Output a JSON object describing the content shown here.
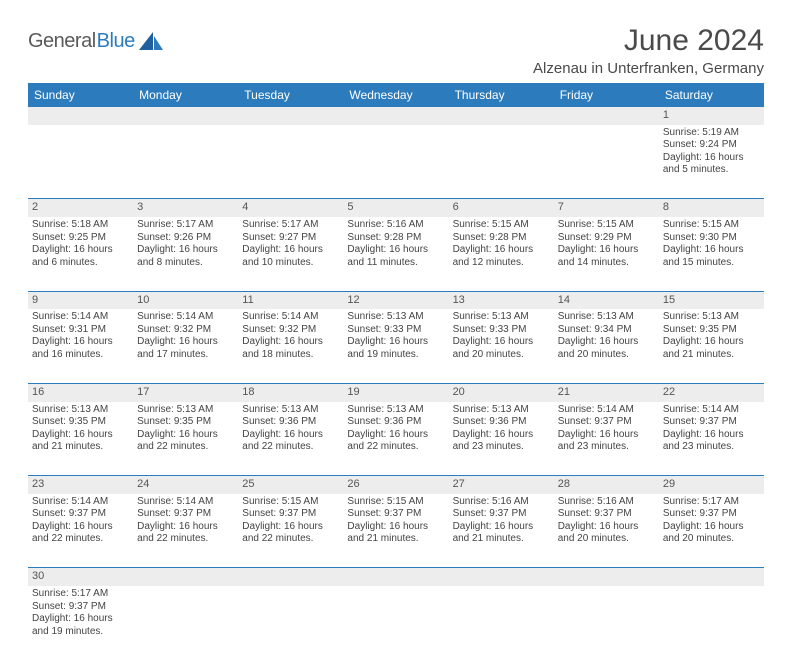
{
  "logo": {
    "text1": "General",
    "text2": "Blue"
  },
  "title": "June 2024",
  "location": "Alzenau in Unterfranken, Germany",
  "columns": [
    "Sunday",
    "Monday",
    "Tuesday",
    "Wednesday",
    "Thursday",
    "Friday",
    "Saturday"
  ],
  "colors": {
    "header_bg": "#2b7bbd",
    "header_fg": "#ffffff",
    "daynum_bg": "#ededed",
    "rule": "#2b7bbd",
    "text": "#444444"
  },
  "weeks": [
    [
      null,
      null,
      null,
      null,
      null,
      null,
      {
        "n": "1",
        "sr": "Sunrise: 5:19 AM",
        "ss": "Sunset: 9:24 PM",
        "d1": "Daylight: 16 hours",
        "d2": "and 5 minutes."
      }
    ],
    [
      {
        "n": "2",
        "sr": "Sunrise: 5:18 AM",
        "ss": "Sunset: 9:25 PM",
        "d1": "Daylight: 16 hours",
        "d2": "and 6 minutes."
      },
      {
        "n": "3",
        "sr": "Sunrise: 5:17 AM",
        "ss": "Sunset: 9:26 PM",
        "d1": "Daylight: 16 hours",
        "d2": "and 8 minutes."
      },
      {
        "n": "4",
        "sr": "Sunrise: 5:17 AM",
        "ss": "Sunset: 9:27 PM",
        "d1": "Daylight: 16 hours",
        "d2": "and 10 minutes."
      },
      {
        "n": "5",
        "sr": "Sunrise: 5:16 AM",
        "ss": "Sunset: 9:28 PM",
        "d1": "Daylight: 16 hours",
        "d2": "and 11 minutes."
      },
      {
        "n": "6",
        "sr": "Sunrise: 5:15 AM",
        "ss": "Sunset: 9:28 PM",
        "d1": "Daylight: 16 hours",
        "d2": "and 12 minutes."
      },
      {
        "n": "7",
        "sr": "Sunrise: 5:15 AM",
        "ss": "Sunset: 9:29 PM",
        "d1": "Daylight: 16 hours",
        "d2": "and 14 minutes."
      },
      {
        "n": "8",
        "sr": "Sunrise: 5:15 AM",
        "ss": "Sunset: 9:30 PM",
        "d1": "Daylight: 16 hours",
        "d2": "and 15 minutes."
      }
    ],
    [
      {
        "n": "9",
        "sr": "Sunrise: 5:14 AM",
        "ss": "Sunset: 9:31 PM",
        "d1": "Daylight: 16 hours",
        "d2": "and 16 minutes."
      },
      {
        "n": "10",
        "sr": "Sunrise: 5:14 AM",
        "ss": "Sunset: 9:32 PM",
        "d1": "Daylight: 16 hours",
        "d2": "and 17 minutes."
      },
      {
        "n": "11",
        "sr": "Sunrise: 5:14 AM",
        "ss": "Sunset: 9:32 PM",
        "d1": "Daylight: 16 hours",
        "d2": "and 18 minutes."
      },
      {
        "n": "12",
        "sr": "Sunrise: 5:13 AM",
        "ss": "Sunset: 9:33 PM",
        "d1": "Daylight: 16 hours",
        "d2": "and 19 minutes."
      },
      {
        "n": "13",
        "sr": "Sunrise: 5:13 AM",
        "ss": "Sunset: 9:33 PM",
        "d1": "Daylight: 16 hours",
        "d2": "and 20 minutes."
      },
      {
        "n": "14",
        "sr": "Sunrise: 5:13 AM",
        "ss": "Sunset: 9:34 PM",
        "d1": "Daylight: 16 hours",
        "d2": "and 20 minutes."
      },
      {
        "n": "15",
        "sr": "Sunrise: 5:13 AM",
        "ss": "Sunset: 9:35 PM",
        "d1": "Daylight: 16 hours",
        "d2": "and 21 minutes."
      }
    ],
    [
      {
        "n": "16",
        "sr": "Sunrise: 5:13 AM",
        "ss": "Sunset: 9:35 PM",
        "d1": "Daylight: 16 hours",
        "d2": "and 21 minutes."
      },
      {
        "n": "17",
        "sr": "Sunrise: 5:13 AM",
        "ss": "Sunset: 9:35 PM",
        "d1": "Daylight: 16 hours",
        "d2": "and 22 minutes."
      },
      {
        "n": "18",
        "sr": "Sunrise: 5:13 AM",
        "ss": "Sunset: 9:36 PM",
        "d1": "Daylight: 16 hours",
        "d2": "and 22 minutes."
      },
      {
        "n": "19",
        "sr": "Sunrise: 5:13 AM",
        "ss": "Sunset: 9:36 PM",
        "d1": "Daylight: 16 hours",
        "d2": "and 22 minutes."
      },
      {
        "n": "20",
        "sr": "Sunrise: 5:13 AM",
        "ss": "Sunset: 9:36 PM",
        "d1": "Daylight: 16 hours",
        "d2": "and 23 minutes."
      },
      {
        "n": "21",
        "sr": "Sunrise: 5:14 AM",
        "ss": "Sunset: 9:37 PM",
        "d1": "Daylight: 16 hours",
        "d2": "and 23 minutes."
      },
      {
        "n": "22",
        "sr": "Sunrise: 5:14 AM",
        "ss": "Sunset: 9:37 PM",
        "d1": "Daylight: 16 hours",
        "d2": "and 23 minutes."
      }
    ],
    [
      {
        "n": "23",
        "sr": "Sunrise: 5:14 AM",
        "ss": "Sunset: 9:37 PM",
        "d1": "Daylight: 16 hours",
        "d2": "and 22 minutes."
      },
      {
        "n": "24",
        "sr": "Sunrise: 5:14 AM",
        "ss": "Sunset: 9:37 PM",
        "d1": "Daylight: 16 hours",
        "d2": "and 22 minutes."
      },
      {
        "n": "25",
        "sr": "Sunrise: 5:15 AM",
        "ss": "Sunset: 9:37 PM",
        "d1": "Daylight: 16 hours",
        "d2": "and 22 minutes."
      },
      {
        "n": "26",
        "sr": "Sunrise: 5:15 AM",
        "ss": "Sunset: 9:37 PM",
        "d1": "Daylight: 16 hours",
        "d2": "and 21 minutes."
      },
      {
        "n": "27",
        "sr": "Sunrise: 5:16 AM",
        "ss": "Sunset: 9:37 PM",
        "d1": "Daylight: 16 hours",
        "d2": "and 21 minutes."
      },
      {
        "n": "28",
        "sr": "Sunrise: 5:16 AM",
        "ss": "Sunset: 9:37 PM",
        "d1": "Daylight: 16 hours",
        "d2": "and 20 minutes."
      },
      {
        "n": "29",
        "sr": "Sunrise: 5:17 AM",
        "ss": "Sunset: 9:37 PM",
        "d1": "Daylight: 16 hours",
        "d2": "and 20 minutes."
      }
    ],
    [
      {
        "n": "30",
        "sr": "Sunrise: 5:17 AM",
        "ss": "Sunset: 9:37 PM",
        "d1": "Daylight: 16 hours",
        "d2": "and 19 minutes."
      },
      null,
      null,
      null,
      null,
      null,
      null
    ]
  ]
}
